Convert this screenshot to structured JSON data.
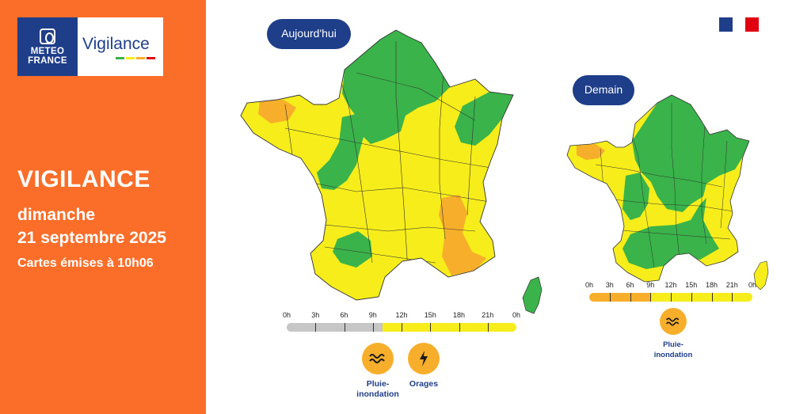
{
  "header": {
    "logo_line1": "METEO",
    "logo_line2": "FRANCE",
    "logo_product": "Vigilance",
    "title": "VIGILANCE",
    "day": "dimanche",
    "date": "21 septembre 2025",
    "issued": "Cartes émises à 10h06"
  },
  "colors": {
    "orange_panel": "#fa6e2a",
    "navy": "#1e3e8a",
    "green": "#3ab34a",
    "yellow": "#f6ed1a",
    "orange": "#f7ae2b",
    "gray": "#c6c6c6",
    "flag_blue": "#1e3e8a",
    "flag_red": "#e1000f"
  },
  "maps": {
    "today": {
      "label": "Aujourd'hui",
      "levels": {
        "green": "Nord, Nord-Est, Centre, Sud-Ouest (Lot-et-Garonne), Corse",
        "orange": "Finistère, Rhône-Alpes, Provence"
      },
      "timeline": {
        "ticks": [
          "0h",
          "3h",
          "6h",
          "9h",
          "12h",
          "15h",
          "18h",
          "21h",
          "0h"
        ],
        "segments": [
          {
            "from": 0,
            "to": 10,
            "level": "gray"
          },
          {
            "from": 10,
            "to": 24,
            "level": "yellow"
          }
        ]
      },
      "hazards": [
        {
          "icon": "rain-flood-icon",
          "label_line1": "Pluie-",
          "label_line2": "inondation"
        },
        {
          "icon": "thunderstorm-icon",
          "label_line1": "Orages",
          "label_line2": ""
        }
      ]
    },
    "tomorrow": {
      "label": "Demain",
      "levels": {
        "green": "Nord, Est, Centre, Sud-Ouest, Méditerranée",
        "orange": "Finistère"
      },
      "timeline": {
        "ticks": [
          "0h",
          "3h",
          "6h",
          "9h",
          "12h",
          "15h",
          "18h",
          "21h",
          "0h"
        ],
        "segments": [
          {
            "from": 0,
            "to": 9,
            "level": "orange"
          },
          {
            "from": 9,
            "to": 24,
            "level": "yellow"
          }
        ]
      },
      "hazards": [
        {
          "icon": "rain-flood-icon",
          "label_line1": "Pluie-",
          "label_line2": "inondation"
        }
      ]
    }
  }
}
